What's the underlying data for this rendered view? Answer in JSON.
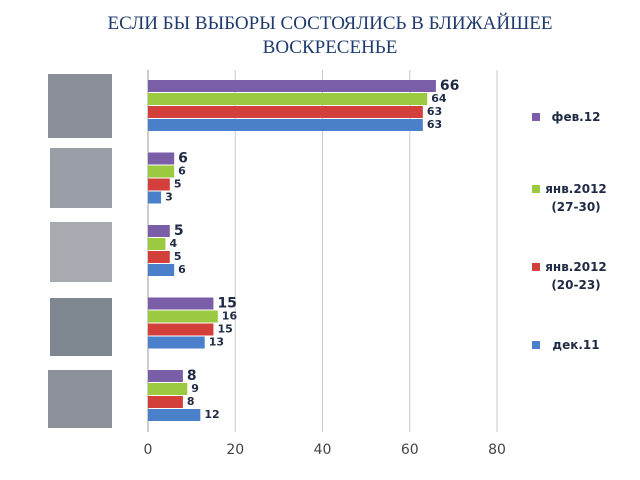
{
  "chart_data": {
    "type": "bar",
    "orientation": "horizontal",
    "title": "ЕСЛИ БЫ ВЫБОРЫ СОСТОЯЛИСЬ В БЛИЖАЙШЕЕ ВОСКРЕСЕНЬЕ",
    "categories": [
      null,
      null,
      null,
      null,
      null
    ],
    "series": [
      {
        "name": "фев.12",
        "color": "#7b5ea8",
        "values": [
          66,
          6,
          5,
          15,
          8
        ]
      },
      {
        "name": "янв.2012 (27-30)",
        "color": "#9bc93f",
        "values": [
          64,
          6,
          4,
          16,
          9
        ]
      },
      {
        "name": "янв.2012 (20-23)",
        "color": "#d3403c",
        "values": [
          63,
          5,
          5,
          15,
          8
        ]
      },
      {
        "name": "дек.11",
        "color": "#4a7fc9",
        "values": [
          63,
          3,
          6,
          13,
          12
        ]
      }
    ],
    "xlim": [
      0,
      80
    ],
    "xticks": [
      0,
      20,
      40,
      60,
      80
    ],
    "grid": true,
    "legend": "right"
  }
}
